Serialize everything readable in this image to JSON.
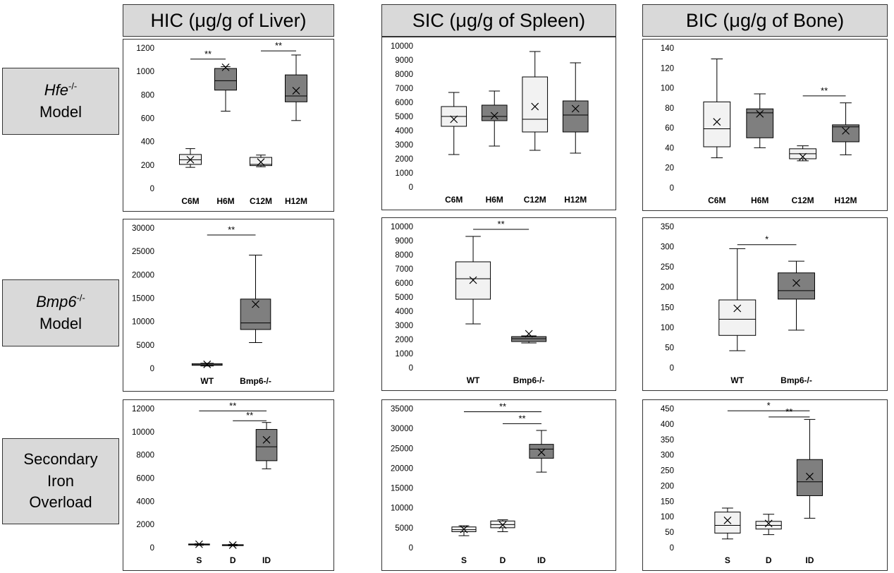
{
  "column_headers": [
    "HIC (μg/g of Liver)",
    "SIC (μg/g of Spleen)",
    "BIC (μg/g of Bone)"
  ],
  "row_labels": [
    {
      "gene": "Hfe",
      "sup": "-/-",
      "line2": "Model"
    },
    {
      "gene": "Bmp6",
      "sup": "-/-",
      "line2": "Model"
    },
    {
      "lines": [
        "Secondary",
        "Iron",
        "Overload"
      ]
    }
  ],
  "colors": {
    "light_box": "#f2f2f2",
    "dark_box": "#7f7f7f",
    "outline": "#000000"
  },
  "chart_data": [
    {
      "type": "box",
      "row": 0,
      "col": 0,
      "ylim": [
        0,
        1200
      ],
      "yticks": [
        0,
        200,
        400,
        600,
        800,
        1000,
        1200
      ],
      "categories": [
        "C6M",
        "H6M",
        "C12M",
        "H12M"
      ],
      "boxes": [
        {
          "min": 180,
          "q1": 205,
          "median": 245,
          "q3": 290,
          "max": 340,
          "mean": 245,
          "fill": "light"
        },
        {
          "min": 660,
          "q1": 840,
          "median": 920,
          "q3": 1025,
          "max": 1040,
          "mean": 1035,
          "fill": "dark"
        },
        {
          "min": 185,
          "q1": 195,
          "median": 205,
          "q3": 265,
          "max": 285,
          "mean": 225,
          "fill": "light"
        },
        {
          "min": 580,
          "q1": 740,
          "median": 790,
          "q3": 970,
          "max": 1140,
          "mean": 835,
          "fill": "dark"
        }
      ],
      "sig": [
        {
          "from": 0,
          "to": 1,
          "y": 1105,
          "label": "**"
        },
        {
          "from": 2,
          "to": 3,
          "y": 1175,
          "label": "**"
        }
      ]
    },
    {
      "type": "box",
      "row": 0,
      "col": 1,
      "ylim": [
        0,
        10000
      ],
      "yticks": [
        0,
        1000,
        2000,
        3000,
        4000,
        5000,
        6000,
        7000,
        8000,
        9000,
        10000
      ],
      "categories": [
        "C6M",
        "H6M",
        "C12M",
        "H12M"
      ],
      "boxes": [
        {
          "min": 2300,
          "q1": 4300,
          "median": 5000,
          "q3": 5700,
          "max": 6700,
          "mean": 4800,
          "fill": "light"
        },
        {
          "min": 2900,
          "q1": 4700,
          "median": 5000,
          "q3": 5800,
          "max": 6800,
          "mean": 5050,
          "fill": "dark"
        },
        {
          "min": 2600,
          "q1": 3900,
          "median": 4800,
          "q3": 7800,
          "max": 9600,
          "mean": 5700,
          "fill": "light"
        },
        {
          "min": 2400,
          "q1": 3900,
          "median": 5100,
          "q3": 6100,
          "max": 8800,
          "mean": 5550,
          "fill": "dark"
        }
      ],
      "sig": []
    },
    {
      "type": "box",
      "row": 0,
      "col": 2,
      "ylim": [
        0,
        140
      ],
      "yticks": [
        0,
        20,
        40,
        60,
        80,
        100,
        120,
        140
      ],
      "categories": [
        "C6M",
        "H6M",
        "C12M",
        "H12M"
      ],
      "boxes": [
        {
          "min": 30,
          "q1": 41,
          "median": 59,
          "q3": 86,
          "max": 129,
          "mean": 66,
          "fill": "light"
        },
        {
          "min": 40,
          "q1": 50,
          "median": 75,
          "q3": 79,
          "max": 94,
          "mean": 74,
          "fill": "dark"
        },
        {
          "min": 27,
          "q1": 29,
          "median": 34,
          "q3": 39,
          "max": 42,
          "mean": 31,
          "fill": "light"
        },
        {
          "min": 33,
          "q1": 46,
          "median": 61,
          "q3": 63,
          "max": 85,
          "mean": 57,
          "fill": "dark"
        }
      ],
      "sig": [
        {
          "from": 2,
          "to": 3,
          "y": 92,
          "label": "**"
        }
      ]
    },
    {
      "type": "box",
      "row": 1,
      "col": 0,
      "ylim": [
        0,
        30000
      ],
      "yticks": [
        0,
        5000,
        10000,
        15000,
        20000,
        25000,
        30000
      ],
      "categories": [
        "WT",
        "Bmp6-/-"
      ],
      "boxes": [
        {
          "min": 500,
          "q1": 650,
          "median": 800,
          "q3": 1000,
          "max": 1100,
          "mean": 850,
          "fill": "light"
        },
        {
          "min": 5500,
          "q1": 8300,
          "median": 9700,
          "q3": 14800,
          "max": 24200,
          "mean": 13700,
          "fill": "dark"
        }
      ],
      "sig": [
        {
          "from": 0,
          "to": 1,
          "y": 28500,
          "label": "**"
        }
      ]
    },
    {
      "type": "box",
      "row": 1,
      "col": 1,
      "ylim": [
        0,
        10000
      ],
      "yticks": [
        0,
        1000,
        2000,
        3000,
        4000,
        5000,
        6000,
        7000,
        8000,
        9000,
        10000
      ],
      "categories": [
        "WT",
        "Bmp6-/-"
      ],
      "boxes": [
        {
          "min": 3100,
          "q1": 4850,
          "median": 6300,
          "q3": 7500,
          "max": 9300,
          "mean": 6200,
          "fill": "light"
        },
        {
          "min": 1750,
          "q1": 1850,
          "median": 2050,
          "q3": 2200,
          "max": 2250,
          "mean": 2400,
          "fill": "dark"
        }
      ],
      "sig": [
        {
          "from": 0,
          "to": 1,
          "y": 9800,
          "label": "**"
        }
      ]
    },
    {
      "type": "box",
      "row": 1,
      "col": 2,
      "ylim": [
        0,
        350
      ],
      "yticks": [
        0,
        50,
        100,
        150,
        200,
        250,
        300,
        350
      ],
      "categories": [
        "WT",
        "Bmp6-/-"
      ],
      "boxes": [
        {
          "min": 42,
          "q1": 80,
          "median": 120,
          "q3": 168,
          "max": 295,
          "mean": 147,
          "fill": "light"
        },
        {
          "min": 93,
          "q1": 170,
          "median": 191,
          "q3": 235,
          "max": 264,
          "mean": 210,
          "fill": "dark"
        }
      ],
      "sig": [
        {
          "from": 0,
          "to": 1,
          "y": 305,
          "label": "*"
        }
      ]
    },
    {
      "type": "box",
      "row": 2,
      "col": 0,
      "ylim": [
        0,
        12000
      ],
      "yticks": [
        0,
        2000,
        4000,
        6000,
        8000,
        10000,
        12000
      ],
      "categories": [
        "S",
        "D",
        "ID"
      ],
      "boxes": [
        {
          "min": 200,
          "q1": 230,
          "median": 270,
          "q3": 310,
          "max": 330,
          "mean": 290,
          "fill": "light"
        },
        {
          "min": 150,
          "q1": 170,
          "median": 200,
          "q3": 250,
          "max": 280,
          "mean": 220,
          "fill": "light"
        },
        {
          "min": 6800,
          "q1": 7500,
          "median": 8700,
          "q3": 10200,
          "max": 10800,
          "mean": 9300,
          "fill": "dark"
        }
      ],
      "sig": [
        {
          "from": 0,
          "to": 2,
          "y": 11800,
          "label": "**"
        },
        {
          "from": 1,
          "to": 2,
          "y": 10950,
          "label": "**"
        }
      ]
    },
    {
      "type": "box",
      "row": 2,
      "col": 1,
      "ylim": [
        0,
        35000
      ],
      "yticks": [
        0,
        5000,
        10000,
        15000,
        20000,
        25000,
        30000,
        35000
      ],
      "categories": [
        "S",
        "D",
        "ID"
      ],
      "boxes": [
        {
          "min": 3000,
          "q1": 4000,
          "median": 4500,
          "q3": 5200,
          "max": 5500,
          "mean": 4600,
          "fill": "light"
        },
        {
          "min": 4000,
          "q1": 5000,
          "median": 5800,
          "q3": 6700,
          "max": 7000,
          "mean": 5700,
          "fill": "light"
        },
        {
          "min": 19000,
          "q1": 22500,
          "median": 24800,
          "q3": 26000,
          "max": 29500,
          "mean": 24000,
          "fill": "dark"
        }
      ],
      "sig": [
        {
          "from": 0,
          "to": 2,
          "y": 34200,
          "label": "**"
        },
        {
          "from": 1,
          "to": 2,
          "y": 31200,
          "label": "**"
        }
      ]
    },
    {
      "type": "box",
      "row": 2,
      "col": 2,
      "ylim": [
        0,
        450
      ],
      "yticks": [
        0,
        50,
        100,
        150,
        200,
        250,
        300,
        350,
        400,
        450
      ],
      "categories": [
        "S",
        "D",
        "ID"
      ],
      "boxes": [
        {
          "min": 28,
          "q1": 47,
          "median": 72,
          "q3": 115,
          "max": 128,
          "mean": 88,
          "fill": "light"
        },
        {
          "min": 42,
          "q1": 60,
          "median": 72,
          "q3": 85,
          "max": 108,
          "mean": 78,
          "fill": "light"
        },
        {
          "min": 95,
          "q1": 168,
          "median": 213,
          "q3": 285,
          "max": 415,
          "mean": 230,
          "fill": "dark"
        }
      ],
      "sig": [
        {
          "from": 0,
          "to": 2,
          "y": 443,
          "label": "*"
        },
        {
          "from": 1,
          "to": 2,
          "y": 423,
          "label": "**"
        }
      ]
    }
  ]
}
